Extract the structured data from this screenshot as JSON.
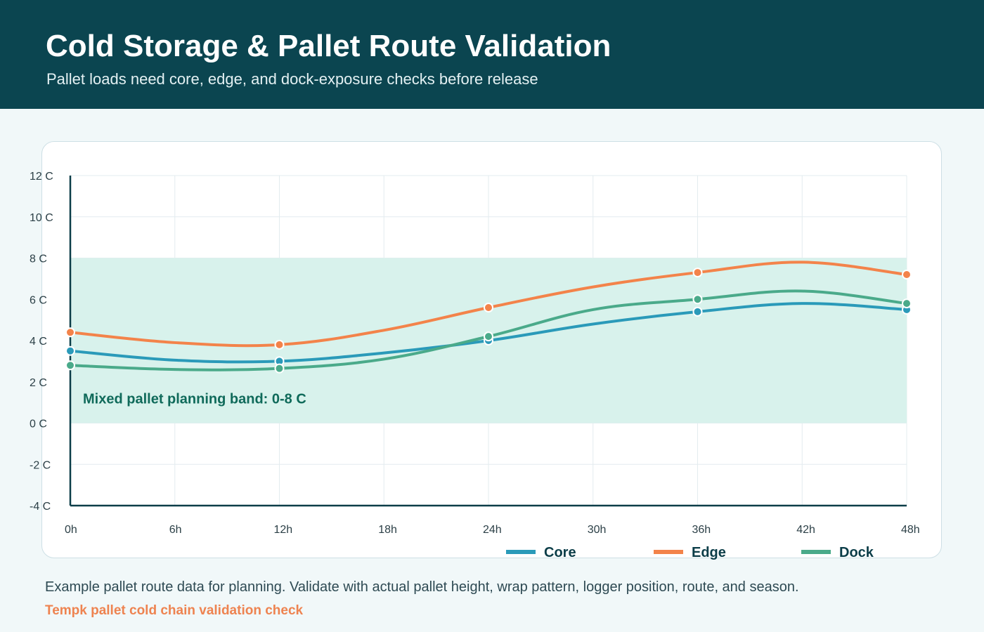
{
  "header": {
    "title": "Cold Storage & Pallet Route Validation",
    "subtitle": "Pallet loads need core, edge, and dock-exposure checks before release"
  },
  "chart_data": {
    "type": "line",
    "x": [
      0,
      6,
      12,
      18,
      24,
      30,
      36,
      42,
      48
    ],
    "x_tick_labels": [
      "0h",
      "6h",
      "12h",
      "18h",
      "24h",
      "30h",
      "36h",
      "42h",
      "48h"
    ],
    "y_tick_values": [
      -4,
      -2,
      0,
      2,
      4,
      6,
      8,
      10,
      12
    ],
    "y_tick_labels": [
      "-4 C",
      "-2 C",
      "0 C",
      "2 C",
      "4 C",
      "6 C",
      "8 C",
      "10 C",
      "12 C"
    ],
    "xlim": [
      0,
      48
    ],
    "ylim": [
      -4,
      12
    ],
    "grid": true,
    "legend_position": "bottom-right",
    "series": [
      {
        "name": "Core",
        "color": "#2a9ab9",
        "values": [
          3.5,
          3.05,
          3.0,
          3.4,
          4.0,
          4.8,
          5.4,
          5.8,
          5.5
        ],
        "marker_indices": [
          0,
          2,
          4,
          6,
          8
        ]
      },
      {
        "name": "Edge",
        "color": "#f3834a",
        "values": [
          4.4,
          3.9,
          3.8,
          4.5,
          5.6,
          6.6,
          7.3,
          7.8,
          7.2
        ],
        "marker_indices": [
          0,
          2,
          4,
          6,
          8
        ]
      },
      {
        "name": "Dock",
        "color": "#4aaa8a",
        "values": [
          2.8,
          2.6,
          2.65,
          3.1,
          4.2,
          5.5,
          6.0,
          6.4,
          5.8
        ],
        "marker_indices": [
          0,
          2,
          4,
          6,
          8
        ]
      }
    ],
    "band": {
      "from": 0,
      "to": 8,
      "label": "Mixed pallet planning band: 0-8 C",
      "color": "#d8f2ec",
      "label_color": "#0f6a5a"
    },
    "axis_color": "#0b3d48",
    "grid_color": "#e3ecef"
  },
  "footer": {
    "note": "Example pallet route data for planning. Validate with actual pallet height, wrap pattern, logger position, route, and season.",
    "brand": "Tempk pallet cold chain validation check"
  }
}
